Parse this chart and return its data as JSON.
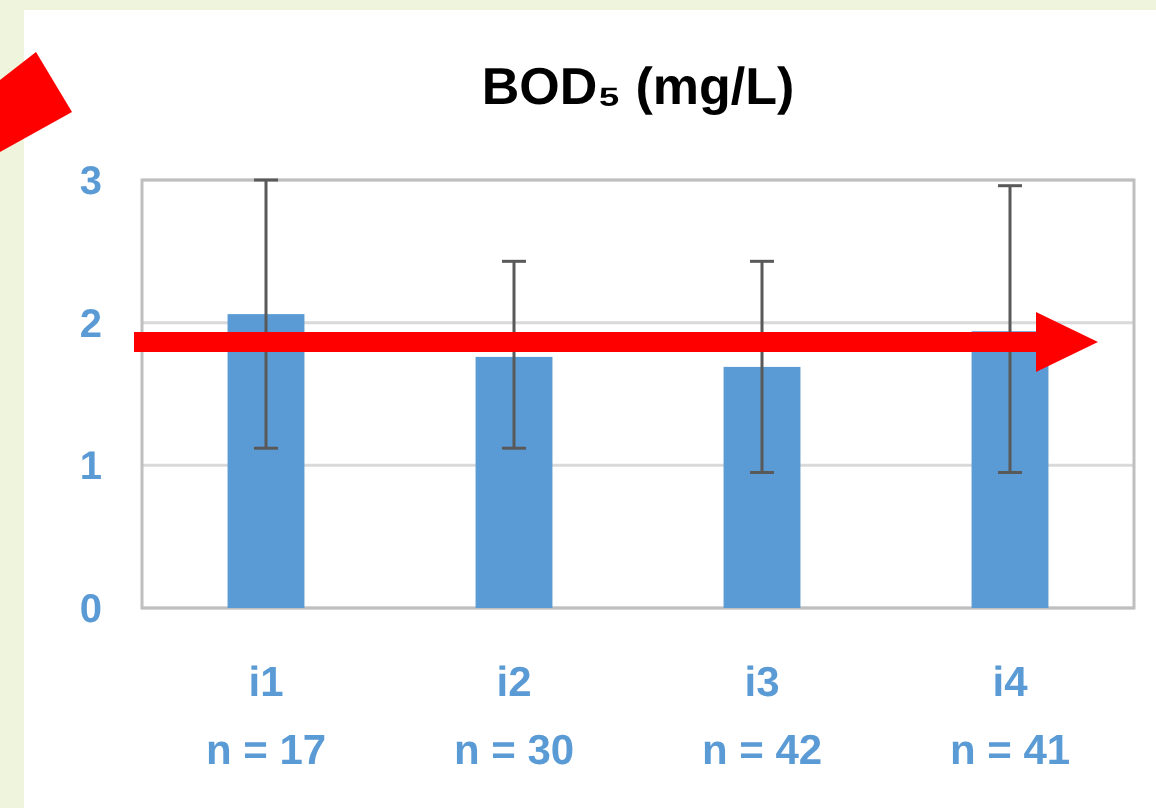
{
  "chart_data": {
    "type": "bar",
    "title": "BOD₅ (mg/L)",
    "categories": [
      "i1\nn = 17",
      "i2\nn = 30",
      "i3\nn = 42",
      "i4\nn = 41"
    ],
    "values": [
      2.06,
      1.76,
      1.69,
      1.94
    ],
    "errors": [
      [
        1.12,
        3.0
      ],
      [
        1.12,
        2.43
      ],
      [
        0.95,
        2.43
      ],
      [
        0.95,
        2.96
      ]
    ],
    "color": "#5b9bd5",
    "ylim": [
      0,
      3
    ],
    "yticks": [
      0,
      1,
      2,
      3
    ],
    "grid": "y"
  }
}
